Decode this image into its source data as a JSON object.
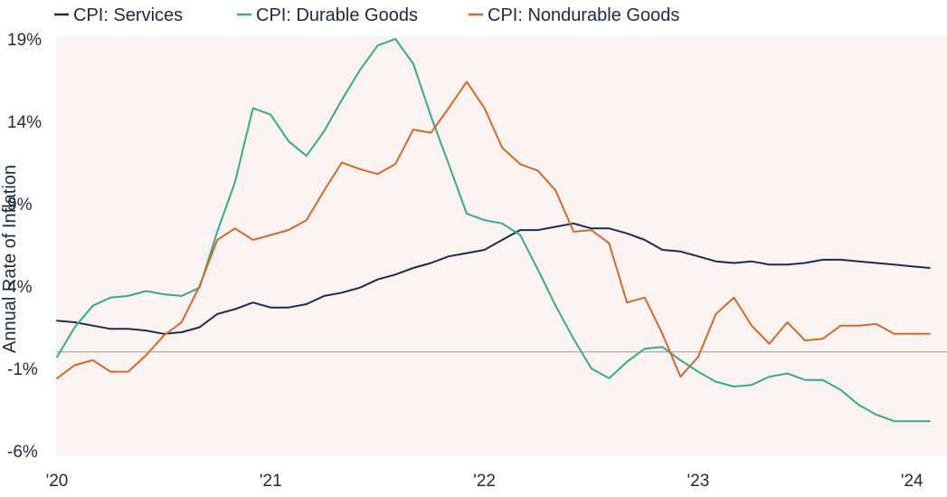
{
  "chart_data": {
    "type": "line",
    "title": "",
    "xlabel": "",
    "ylabel": "Annual Rate of Inflation",
    "ylim": [
      -6,
      19
    ],
    "xlim": [
      2020.0,
      2024.17
    ],
    "x_tick_values": [
      2020,
      2021,
      2022,
      2023,
      2024
    ],
    "x_tick_labels": [
      "'20",
      "'21",
      "'22",
      "'23",
      "'24"
    ],
    "y_tick_values": [
      -6,
      -1,
      4,
      9,
      14,
      19
    ],
    "y_tick_labels": [
      "-6%",
      "-1%",
      "4%",
      "9%",
      "14%",
      "19%"
    ],
    "zero_line": 0,
    "grid": false,
    "legend_position": "top",
    "background_color": "#fbf3f1",
    "x": [
      2020.0,
      2020.083,
      2020.167,
      2020.25,
      2020.333,
      2020.417,
      2020.5,
      2020.583,
      2020.667,
      2020.75,
      2020.833,
      2020.917,
      2021.0,
      2021.083,
      2021.167,
      2021.25,
      2021.333,
      2021.417,
      2021.5,
      2021.583,
      2021.667,
      2021.75,
      2021.833,
      2021.917,
      2022.0,
      2022.083,
      2022.167,
      2022.25,
      2022.333,
      2022.417,
      2022.5,
      2022.583,
      2022.667,
      2022.75,
      2022.833,
      2022.917,
      2023.0,
      2023.083,
      2023.167,
      2023.25,
      2023.333,
      2023.417,
      2023.5,
      2023.583,
      2023.667,
      2023.75,
      2023.833,
      2023.917,
      2024.0,
      2024.083
    ],
    "series": [
      {
        "name": "CPI: Services",
        "color": "#1d2b4f",
        "values": [
          1.9,
          1.8,
          1.6,
          1.4,
          1.4,
          1.3,
          1.1,
          1.2,
          1.5,
          2.3,
          2.6,
          3.0,
          2.7,
          2.7,
          2.9,
          3.4,
          3.6,
          3.9,
          4.4,
          4.7,
          5.1,
          5.4,
          5.8,
          6.0,
          6.2,
          6.8,
          7.4,
          7.4,
          7.6,
          7.8,
          7.5,
          7.5,
          7.2,
          6.8,
          6.2,
          6.1,
          5.8,
          5.5,
          5.4,
          5.5,
          5.3,
          5.3,
          5.4,
          5.6,
          5.6,
          5.5,
          5.4,
          5.3,
          5.2,
          5.1
        ]
      },
      {
        "name": "CPI: Durable Goods",
        "color": "#3aa88e",
        "values": [
          -0.3,
          1.5,
          2.8,
          3.3,
          3.4,
          3.7,
          3.5,
          3.4,
          3.9,
          7.3,
          10.3,
          14.8,
          14.4,
          12.8,
          11.9,
          13.4,
          15.3,
          17.1,
          18.6,
          19.0,
          17.5,
          14.3,
          11.4,
          8.4,
          8.0,
          7.8,
          7.1,
          5.0,
          2.8,
          0.8,
          -1.0,
          -1.6,
          -0.6,
          0.2,
          0.3,
          -0.5,
          -1.2,
          -1.8,
          -2.1,
          -2.0,
          -1.5,
          -1.3,
          -1.7,
          -1.7,
          -2.3,
          -3.2,
          -3.8,
          -4.2,
          -4.2,
          -4.2
        ]
      },
      {
        "name": "CPI: Nondurable Goods",
        "color": "#d4682a",
        "values": [
          -1.6,
          -0.8,
          -0.5,
          -1.2,
          -1.2,
          -0.2,
          1.0,
          1.8,
          4.0,
          6.8,
          7.5,
          6.8,
          7.1,
          7.4,
          8.0,
          9.8,
          11.5,
          11.1,
          10.8,
          11.4,
          13.5,
          13.3,
          14.8,
          16.4,
          14.8,
          12.4,
          11.4,
          11.0,
          9.8,
          7.3,
          7.4,
          6.6,
          3.0,
          3.3,
          1.1,
          -1.5,
          -0.3,
          2.3,
          3.3,
          1.6,
          0.5,
          1.8,
          0.7,
          0.8,
          1.6,
          1.6,
          1.7,
          1.1,
          1.1,
          1.1
        ]
      }
    ]
  }
}
